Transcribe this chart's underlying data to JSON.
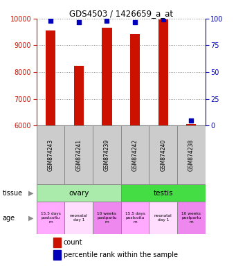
{
  "title": "GDS4503 / 1426659_a_at",
  "samples": [
    "GSM874243",
    "GSM874241",
    "GSM874239",
    "GSM874242",
    "GSM874240",
    "GSM874238"
  ],
  "counts": [
    9560,
    8230,
    9670,
    9420,
    9970,
    6050
  ],
  "percentile_values": [
    98,
    97,
    98,
    97,
    99,
    5
  ],
  "ylim_left": [
    6000,
    10000
  ],
  "ylim_right": [
    0,
    100
  ],
  "yticks_left": [
    6000,
    7000,
    8000,
    9000,
    10000
  ],
  "yticks_right": [
    0,
    25,
    50,
    75,
    100
  ],
  "bar_color": "#cc1100",
  "dot_color": "#0000bb",
  "tissue_groups": [
    {
      "label": "ovary",
      "span": [
        0,
        3
      ],
      "color": "#aaeaaa"
    },
    {
      "label": "testis",
      "span": [
        3,
        6
      ],
      "color": "#44dd44"
    }
  ],
  "age_labels": [
    "15.5 days\npostcoitu\nm",
    "neonatal\nday 1",
    "10 weeks\npostpartu\nm",
    "15.5 days\npostcoitu\nm",
    "neonatal\nday 1",
    "10 weeks\npostpartu\nm"
  ],
  "age_colors": [
    "#ffaaff",
    "#ffddff",
    "#ee88ee",
    "#ffaaff",
    "#ffddff",
    "#ee88ee"
  ],
  "left_axis_color": "#cc1100",
  "right_axis_color": "#0000bb",
  "bar_width": 0.35,
  "background_color": "#ffffff",
  "sample_box_color": "#cccccc",
  "legend_red_label": "count",
  "legend_blue_label": "percentile rank within the sample",
  "tissue_label": "tissue",
  "age_label": "age"
}
